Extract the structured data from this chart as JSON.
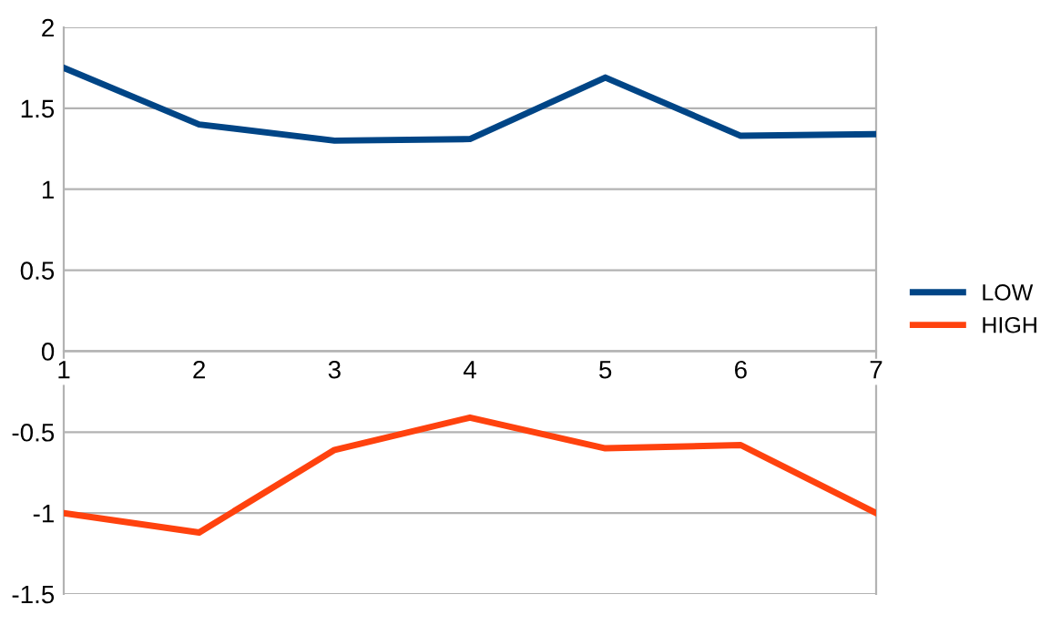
{
  "chart_data": {
    "type": "line",
    "x": [
      1,
      2,
      3,
      4,
      5,
      6,
      7
    ],
    "series": [
      {
        "name": "LOW",
        "color": "#004586",
        "values": [
          1.75,
          1.4,
          1.3,
          1.31,
          1.69,
          1.33,
          1.34
        ]
      },
      {
        "name": "HIGH",
        "color": "#ff420e",
        "values": [
          -1.0,
          -1.12,
          -0.61,
          -0.41,
          -0.6,
          -0.58,
          -1.0
        ]
      }
    ],
    "xlim": [
      1,
      7
    ],
    "xticks": [
      1,
      2,
      3,
      4,
      5,
      6,
      7
    ],
    "ylim": [
      -1.5,
      2
    ],
    "yticks": [
      -1.5,
      -1,
      -0.5,
      0,
      0.5,
      1,
      1.5,
      2
    ],
    "grid": "y",
    "legend": "right",
    "marker": "none",
    "line_style": "solid"
  }
}
